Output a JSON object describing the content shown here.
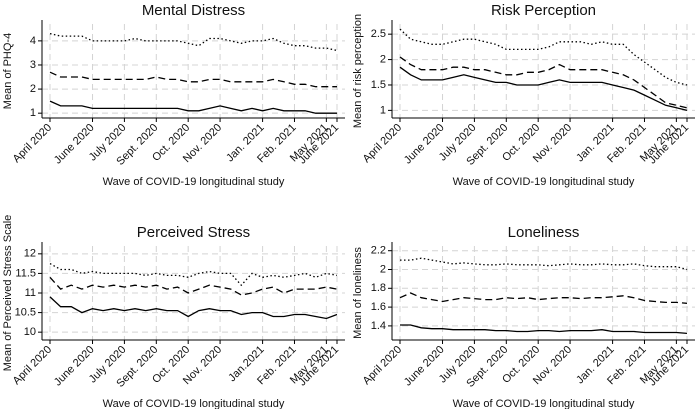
{
  "chart_data": [
    {
      "type": "line",
      "title": "Mental Distress",
      "y_label": "Mean of PHQ-4",
      "x_label": "Wave of COVID-19 longitudinal study",
      "categories": [
        "April 2020",
        null,
        null,
        null,
        "June 2020",
        null,
        null,
        "July 2020",
        null,
        null,
        "Sept. 2020",
        null,
        null,
        "Oct. 2020",
        null,
        null,
        "Nov. 2020",
        null,
        null,
        null,
        "Jan. 2021",
        null,
        null,
        "Feb. 2021",
        null,
        null,
        "May 2021",
        "June 2021"
      ],
      "ylim": [
        0.8,
        4.7
      ],
      "yticks": [
        1,
        2,
        3,
        4
      ],
      "grid": true,
      "series": [
        {
          "color": "#000000",
          "dash": "dotted",
          "values": [
            4.3,
            4.2,
            4.2,
            4.2,
            4.0,
            4.0,
            4.0,
            4.0,
            4.1,
            4.0,
            4.0,
            4.0,
            4.0,
            3.9,
            3.8,
            4.1,
            4.1,
            4.0,
            3.9,
            4.0,
            4.0,
            4.1,
            3.9,
            3.8,
            3.8,
            3.7,
            3.7,
            3.6
          ]
        },
        {
          "color": "#000000",
          "dash": "dashed",
          "values": [
            2.7,
            2.5,
            2.5,
            2.5,
            2.4,
            2.4,
            2.4,
            2.4,
            2.4,
            2.4,
            2.5,
            2.4,
            2.4,
            2.3,
            2.3,
            2.4,
            2.4,
            2.3,
            2.3,
            2.3,
            2.3,
            2.4,
            2.3,
            2.2,
            2.2,
            2.1,
            2.1,
            2.1
          ]
        },
        {
          "color": "#000000",
          "dash": "solid",
          "values": [
            1.5,
            1.3,
            1.3,
            1.3,
            1.2,
            1.2,
            1.2,
            1.2,
            1.2,
            1.2,
            1.2,
            1.2,
            1.2,
            1.1,
            1.1,
            1.2,
            1.3,
            1.2,
            1.1,
            1.2,
            1.1,
            1.2,
            1.1,
            1.1,
            1.1,
            1.0,
            1.0,
            1.0
          ]
        }
      ]
    },
    {
      "type": "line",
      "title": "Risk Perception",
      "y_label": "Mean of risk perception",
      "x_label": "Wave of COVID-19 longitudinal study",
      "categories": [
        "April 2020",
        null,
        null,
        null,
        "June 2020",
        null,
        null,
        "July 2020",
        null,
        null,
        "Sept. 2020",
        null,
        null,
        "Oct. 2020",
        null,
        null,
        "Nov. 2020",
        null,
        null,
        null,
        "Jan. 2021",
        null,
        null,
        "Feb. 2021",
        null,
        null,
        "May 2021",
        "June 2021"
      ],
      "ylim": [
        0.85,
        2.7
      ],
      "yticks": [
        1,
        1.5,
        2,
        2.5
      ],
      "grid": true,
      "series": [
        {
          "color": "#000000",
          "dash": "dotted",
          "values": [
            2.6,
            2.4,
            2.35,
            2.3,
            2.3,
            2.35,
            2.4,
            2.4,
            2.35,
            2.3,
            2.2,
            2.2,
            2.2,
            2.2,
            2.25,
            2.35,
            2.35,
            2.35,
            2.3,
            2.35,
            2.3,
            2.3,
            2.1,
            1.95,
            1.8,
            1.65,
            1.55,
            1.5
          ]
        },
        {
          "color": "#000000",
          "dash": "dashed",
          "values": [
            2.05,
            1.9,
            1.8,
            1.8,
            1.8,
            1.85,
            1.85,
            1.8,
            1.8,
            1.75,
            1.7,
            1.7,
            1.75,
            1.75,
            1.8,
            1.9,
            1.8,
            1.8,
            1.8,
            1.8,
            1.75,
            1.7,
            1.6,
            1.45,
            1.3,
            1.15,
            1.1,
            1.05
          ]
        },
        {
          "color": "#000000",
          "dash": "solid",
          "values": [
            1.85,
            1.7,
            1.6,
            1.6,
            1.6,
            1.65,
            1.7,
            1.65,
            1.6,
            1.55,
            1.55,
            1.5,
            1.5,
            1.5,
            1.55,
            1.6,
            1.55,
            1.55,
            1.55,
            1.55,
            1.5,
            1.45,
            1.4,
            1.3,
            1.2,
            1.1,
            1.05,
            1.0
          ]
        }
      ]
    },
    {
      "type": "line",
      "title": "Perceived Stress",
      "y_label": "Mean of Perceived Stress Scale",
      "x_label": "Wave of COVID-19 longitudinal study",
      "categories": [
        "April 2020",
        null,
        null,
        null,
        "June 2020",
        null,
        null,
        "July 2020",
        null,
        null,
        "Sept. 2020",
        null,
        null,
        "Oct. 2020",
        null,
        null,
        "Nov. 2020",
        null,
        null,
        null,
        "Jan.2021",
        null,
        null,
        "Feb. 2021",
        null,
        null,
        "May 2021",
        "June 2021"
      ],
      "ylim": [
        9.8,
        12.2
      ],
      "yticks": [
        10,
        10.5,
        11,
        11.5,
        12
      ],
      "grid": true,
      "series": [
        {
          "color": "#000000",
          "dash": "dotted",
          "values": [
            11.75,
            11.6,
            11.6,
            11.5,
            11.55,
            11.5,
            11.5,
            11.5,
            11.5,
            11.45,
            11.5,
            11.45,
            11.45,
            11.4,
            11.5,
            11.55,
            11.5,
            11.5,
            11.2,
            11.5,
            11.4,
            11.45,
            11.4,
            11.45,
            11.5,
            11.4,
            11.5,
            11.45
          ]
        },
        {
          "color": "#000000",
          "dash": "dashed",
          "values": [
            11.4,
            11.1,
            11.2,
            11.1,
            11.2,
            11.15,
            11.2,
            11.15,
            11.2,
            11.15,
            11.2,
            11.1,
            11.15,
            11.0,
            11.1,
            11.2,
            11.15,
            11.1,
            10.95,
            11.0,
            11.1,
            11.15,
            11.0,
            11.1,
            11.1,
            11.1,
            11.15,
            11.1
          ]
        },
        {
          "color": "#000000",
          "dash": "solid",
          "values": [
            10.9,
            10.65,
            10.65,
            10.5,
            10.6,
            10.55,
            10.6,
            10.55,
            10.6,
            10.55,
            10.6,
            10.55,
            10.55,
            10.4,
            10.55,
            10.6,
            10.55,
            10.55,
            10.45,
            10.5,
            10.5,
            10.4,
            10.4,
            10.45,
            10.45,
            10.4,
            10.35,
            10.45
          ]
        }
      ]
    },
    {
      "type": "line",
      "title": "Loneliness",
      "y_label": "Mean of loneliness",
      "x_label": "Wave of COVID-19 longitudinal study",
      "categories": [
        "April 2020",
        null,
        null,
        null,
        "June 2020",
        null,
        null,
        "July 2020",
        null,
        null,
        "Sept. 2020",
        null,
        null,
        "Oct. 2020",
        null,
        null,
        "Nov. 2020",
        null,
        null,
        null,
        "Jan. 2021",
        null,
        null,
        "Feb. 2021",
        null,
        null,
        "May 2021",
        "June 2021"
      ],
      "ylim": [
        1.25,
        2.25
      ],
      "yticks": [
        1.4,
        1.6,
        1.8,
        2,
        2.2
      ],
      "grid": true,
      "series": [
        {
          "color": "#000000",
          "dash": "dotted",
          "values": [
            2.1,
            2.1,
            2.12,
            2.1,
            2.08,
            2.06,
            2.07,
            2.06,
            2.05,
            2.05,
            2.06,
            2.05,
            2.05,
            2.05,
            2.04,
            2.05,
            2.06,
            2.05,
            2.05,
            2.06,
            2.05,
            2.05,
            2.06,
            2.04,
            2.03,
            2.03,
            2.03,
            2.0
          ]
        },
        {
          "color": "#000000",
          "dash": "dashed",
          "values": [
            1.7,
            1.75,
            1.7,
            1.68,
            1.66,
            1.68,
            1.7,
            1.69,
            1.68,
            1.68,
            1.7,
            1.69,
            1.7,
            1.68,
            1.69,
            1.7,
            1.7,
            1.69,
            1.7,
            1.7,
            1.71,
            1.72,
            1.7,
            1.67,
            1.66,
            1.65,
            1.65,
            1.64
          ]
        },
        {
          "color": "#000000",
          "dash": "solid",
          "values": [
            1.41,
            1.41,
            1.38,
            1.37,
            1.37,
            1.36,
            1.36,
            1.36,
            1.36,
            1.35,
            1.35,
            1.34,
            1.34,
            1.35,
            1.35,
            1.34,
            1.35,
            1.35,
            1.35,
            1.36,
            1.34,
            1.34,
            1.34,
            1.33,
            1.33,
            1.33,
            1.33,
            1.32
          ]
        }
      ]
    }
  ]
}
